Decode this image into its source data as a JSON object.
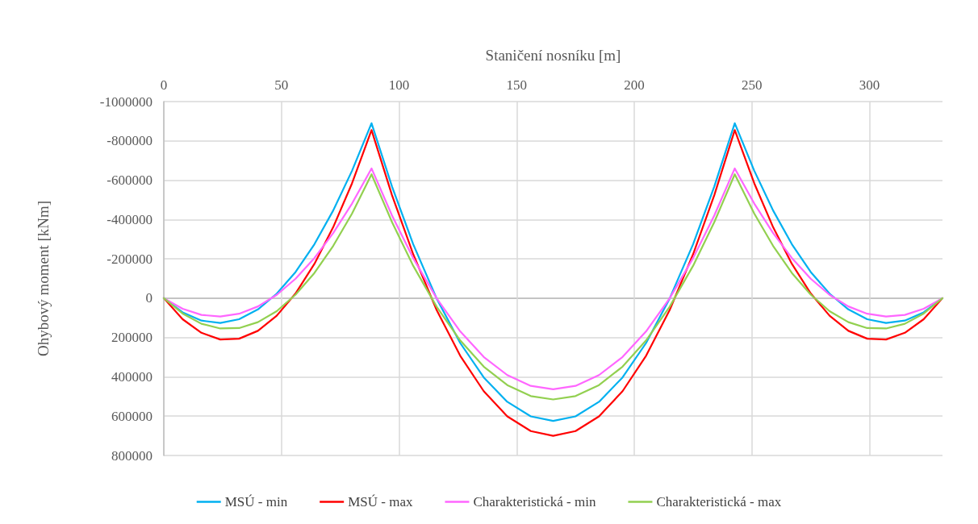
{
  "chart_data": {
    "type": "line",
    "xlabel": "Staničení nosníku [m]",
    "ylabel": "Ohybový moment [kNm]",
    "x": [
      0,
      8,
      16,
      24,
      32,
      40,
      48,
      56,
      64,
      72,
      80,
      88.3,
      97,
      106,
      116,
      126,
      136,
      146,
      156,
      165.5,
      175,
      185,
      195,
      205,
      215,
      225,
      234,
      242.7,
      251,
      259,
      267,
      275,
      283,
      291,
      299,
      307,
      315,
      323,
      331
    ],
    "series": [
      {
        "name": "MSÚ - min",
        "color": "#00b0f0",
        "values": [
          0,
          72000,
          114000,
          126000,
          107000,
          57000,
          -23000,
          -133000,
          -274000,
          -446000,
          -648000,
          -890000,
          -568000,
          -275000,
          2000,
          228000,
          403000,
          527000,
          601000,
          624000,
          601000,
          527000,
          403000,
          228000,
          2000,
          -275000,
          -568000,
          -890000,
          -648000,
          -446000,
          -274000,
          -133000,
          -23000,
          57000,
          107000,
          126000,
          114000,
          72000,
          0
        ]
      },
      {
        "name": "MSÚ - max",
        "color": "#ff0000",
        "values": [
          0,
          107000,
          176000,
          210000,
          206000,
          166000,
          89000,
          -24000,
          -174000,
          -361000,
          -584000,
          -855000,
          -524000,
          -224000,
          61000,
          293000,
          473000,
          601000,
          676000,
          700000,
          676000,
          601000,
          473000,
          293000,
          61000,
          -224000,
          -524000,
          -855000,
          -584000,
          -361000,
          -174000,
          -24000,
          89000,
          166000,
          206000,
          210000,
          176000,
          107000,
          0
        ]
      },
      {
        "name": "Charakteristická - min",
        "color": "#ff66ff",
        "values": [
          0,
          54000,
          85000,
          93000,
          79000,
          42000,
          -17000,
          -99000,
          -204000,
          -331000,
          -481000,
          -660000,
          -421000,
          -204000,
          1000,
          169000,
          299000,
          391000,
          446000,
          463000,
          446000,
          391000,
          299000,
          169000,
          1000,
          -204000,
          -421000,
          -660000,
          -481000,
          -331000,
          -204000,
          -99000,
          -17000,
          42000,
          79000,
          93000,
          85000,
          54000,
          0
        ]
      },
      {
        "name": "Charakteristická - max",
        "color": "#92d050",
        "values": [
          0,
          78000,
          130000,
          154000,
          152000,
          122000,
          66000,
          -18000,
          -128000,
          -266000,
          -430000,
          -630000,
          -387000,
          -165000,
          44000,
          215000,
          348000,
          442000,
          498000,
          515000,
          498000,
          442000,
          348000,
          215000,
          44000,
          -165000,
          -387000,
          -630000,
          -430000,
          -266000,
          -128000,
          -18000,
          66000,
          122000,
          152000,
          154000,
          130000,
          78000,
          0
        ]
      }
    ],
    "xlim": [
      0,
      331
    ],
    "xticks": [
      0,
      50,
      100,
      150,
      200,
      250,
      300
    ],
    "ylim": [
      800000,
      -1000000
    ],
    "yticks": [
      -1000000,
      -800000,
      -600000,
      -400000,
      -200000,
      0,
      200000,
      400000,
      600000,
      800000
    ],
    "grid": true,
    "legend": "bottom",
    "marker": "none",
    "line_style": "solid"
  }
}
